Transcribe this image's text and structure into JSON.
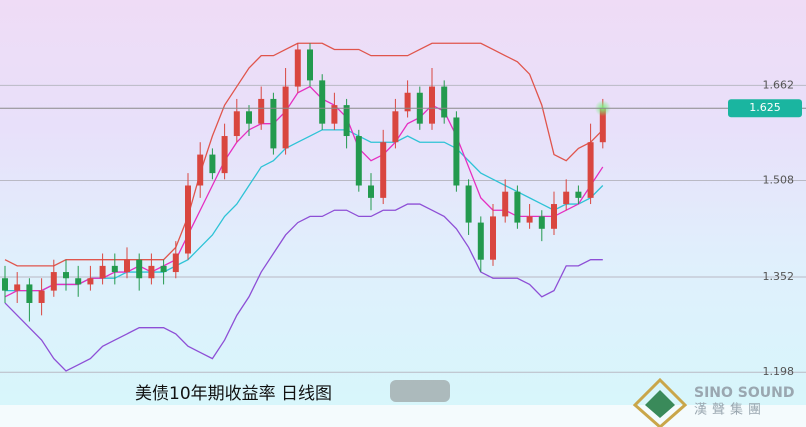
{
  "chart_data": {
    "type": "candlestick",
    "title": "美债10年期收益率 日线图",
    "watermark": {
      "brand": "SINO SOUND",
      "brand_cn": "漢聲集團"
    },
    "ylim": [
      1.145,
      1.8
    ],
    "yticks": [
      1.198,
      1.352,
      1.508,
      1.662
    ],
    "grid": true,
    "last_price": 1.625,
    "up_color": "#d9463f",
    "down_color": "#239a4e",
    "open": [
      1.35,
      1.33,
      1.34,
      1.31,
      1.33,
      1.36,
      1.35,
      1.34,
      1.35,
      1.37,
      1.36,
      1.38,
      1.35,
      1.37,
      1.36,
      1.39,
      1.5,
      1.55,
      1.52,
      1.58,
      1.62,
      1.6,
      1.64,
      1.56,
      1.66,
      1.72,
      1.67,
      1.6,
      1.63,
      1.58,
      1.5,
      1.48,
      1.57,
      1.62,
      1.65,
      1.6,
      1.66,
      1.61,
      1.5,
      1.44,
      1.38,
      1.45,
      1.49,
      1.44,
      1.45,
      1.43,
      1.47,
      1.49,
      1.48,
      1.57
    ],
    "high": [
      1.37,
      1.36,
      1.35,
      1.35,
      1.38,
      1.38,
      1.37,
      1.37,
      1.39,
      1.39,
      1.4,
      1.39,
      1.39,
      1.38,
      1.41,
      1.52,
      1.57,
      1.56,
      1.6,
      1.64,
      1.63,
      1.66,
      1.65,
      1.69,
      1.73,
      1.73,
      1.68,
      1.65,
      1.64,
      1.59,
      1.52,
      1.59,
      1.64,
      1.67,
      1.66,
      1.69,
      1.67,
      1.62,
      1.51,
      1.45,
      1.47,
      1.51,
      1.5,
      1.47,
      1.46,
      1.49,
      1.51,
      1.5,
      1.6,
      1.64
    ],
    "low": [
      1.31,
      1.31,
      1.28,
      1.29,
      1.32,
      1.33,
      1.32,
      1.33,
      1.34,
      1.34,
      1.35,
      1.33,
      1.34,
      1.34,
      1.35,
      1.38,
      1.48,
      1.51,
      1.51,
      1.57,
      1.58,
      1.59,
      1.55,
      1.55,
      1.65,
      1.66,
      1.59,
      1.59,
      1.56,
      1.49,
      1.46,
      1.47,
      1.56,
      1.61,
      1.59,
      1.59,
      1.6,
      1.49,
      1.42,
      1.36,
      1.37,
      1.44,
      1.43,
      1.43,
      1.41,
      1.42,
      1.46,
      1.47,
      1.47,
      1.56
    ],
    "close": [
      1.33,
      1.34,
      1.31,
      1.33,
      1.36,
      1.35,
      1.34,
      1.35,
      1.37,
      1.36,
      1.38,
      1.35,
      1.37,
      1.36,
      1.39,
      1.5,
      1.55,
      1.52,
      1.58,
      1.62,
      1.6,
      1.64,
      1.56,
      1.66,
      1.72,
      1.67,
      1.6,
      1.63,
      1.58,
      1.5,
      1.48,
      1.57,
      1.62,
      1.65,
      1.6,
      1.66,
      1.61,
      1.5,
      1.44,
      1.38,
      1.45,
      1.49,
      1.44,
      1.45,
      1.43,
      1.47,
      1.49,
      1.48,
      1.57,
      1.625
    ],
    "series": [
      {
        "color": "#e0554c",
        "values": [
          1.38,
          1.37,
          1.37,
          1.37,
          1.37,
          1.38,
          1.38,
          1.38,
          1.38,
          1.38,
          1.38,
          1.38,
          1.38,
          1.38,
          1.4,
          1.45,
          1.52,
          1.58,
          1.63,
          1.66,
          1.69,
          1.71,
          1.71,
          1.72,
          1.73,
          1.73,
          1.73,
          1.72,
          1.72,
          1.72,
          1.71,
          1.71,
          1.71,
          1.71,
          1.72,
          1.73,
          1.73,
          1.73,
          1.73,
          1.73,
          1.72,
          1.71,
          1.7,
          1.68,
          1.63,
          1.55,
          1.54,
          1.56,
          1.57,
          1.59
        ]
      },
      {
        "color": "#2ec3d6",
        "values": [
          1.33,
          1.33,
          1.33,
          1.33,
          1.34,
          1.34,
          1.34,
          1.35,
          1.35,
          1.35,
          1.36,
          1.36,
          1.36,
          1.36,
          1.37,
          1.38,
          1.4,
          1.42,
          1.45,
          1.47,
          1.5,
          1.53,
          1.54,
          1.56,
          1.57,
          1.58,
          1.59,
          1.59,
          1.59,
          1.58,
          1.57,
          1.57,
          1.57,
          1.58,
          1.57,
          1.57,
          1.57,
          1.56,
          1.54,
          1.52,
          1.51,
          1.5,
          1.49,
          1.48,
          1.47,
          1.46,
          1.47,
          1.47,
          1.48,
          1.5
        ]
      },
      {
        "color": "#8e4fd6",
        "values": [
          1.31,
          1.29,
          1.27,
          1.25,
          1.22,
          1.2,
          1.21,
          1.22,
          1.24,
          1.25,
          1.26,
          1.27,
          1.27,
          1.27,
          1.26,
          1.24,
          1.23,
          1.22,
          1.25,
          1.29,
          1.32,
          1.36,
          1.39,
          1.42,
          1.44,
          1.45,
          1.45,
          1.46,
          1.46,
          1.45,
          1.45,
          1.46,
          1.46,
          1.47,
          1.47,
          1.46,
          1.45,
          1.43,
          1.4,
          1.36,
          1.35,
          1.35,
          1.35,
          1.34,
          1.32,
          1.33,
          1.37,
          1.37,
          1.38,
          1.38
        ]
      },
      {
        "color": "#e52fc1",
        "values": [
          1.32,
          1.33,
          1.33,
          1.33,
          1.34,
          1.34,
          1.34,
          1.35,
          1.35,
          1.36,
          1.36,
          1.37,
          1.36,
          1.37,
          1.38,
          1.42,
          1.46,
          1.5,
          1.54,
          1.57,
          1.59,
          1.6,
          1.6,
          1.62,
          1.65,
          1.66,
          1.64,
          1.63,
          1.61,
          1.56,
          1.54,
          1.55,
          1.57,
          1.6,
          1.61,
          1.63,
          1.62,
          1.58,
          1.53,
          1.48,
          1.46,
          1.46,
          1.45,
          1.45,
          1.45,
          1.45,
          1.46,
          1.47,
          1.5,
          1.53
        ]
      }
    ]
  }
}
